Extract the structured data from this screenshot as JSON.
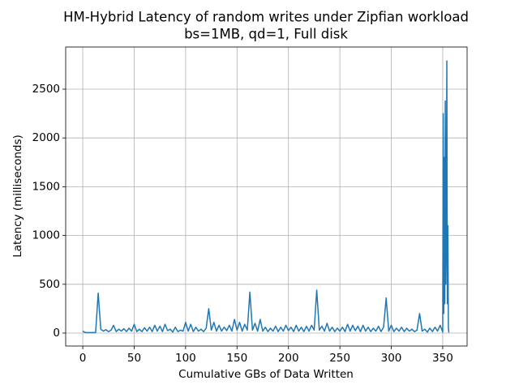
{
  "chart_data": {
    "type": "line",
    "title": "HM-Hybrid Latency of random writes under Zipfian workload",
    "subtitle": "bs=1MB, qd=1, Full disk",
    "xlabel": "Cumulative GBs of Data Written",
    "ylabel": "Latency (milliseconds)",
    "xlim": [
      -16.6,
      373.7
    ],
    "ylim": [
      -133,
      2932
    ],
    "xticks": [
      0,
      50,
      100,
      150,
      200,
      250,
      300,
      350
    ],
    "yticks": [
      0,
      500,
      1000,
      1500,
      2000,
      2500
    ],
    "grid": true,
    "series": [
      {
        "color": "#1f77b4",
        "x": [
          0,
          2.5,
          5,
          7.5,
          10,
          12.5,
          15,
          17.5,
          20,
          22.5,
          25,
          27.5,
          30,
          32.5,
          35,
          37.5,
          40,
          42.5,
          45,
          47.5,
          50,
          52.5,
          55,
          57.5,
          60,
          62.5,
          65,
          67.5,
          70,
          72.5,
          75,
          77.5,
          80,
          82.5,
          85,
          87.5,
          90,
          92.5,
          95,
          97.5,
          100,
          102.5,
          105,
          107.5,
          110,
          112.5,
          115,
          117.5,
          120,
          122.5,
          125,
          127.5,
          130,
          132.5,
          135,
          137.5,
          140,
          142.5,
          145,
          147.5,
          150,
          152.5,
          155,
          157.5,
          160,
          162.5,
          165,
          167.5,
          170,
          172.5,
          175,
          177.5,
          180,
          182.5,
          185,
          187.5,
          190,
          192.5,
          195,
          197.5,
          200,
          202.5,
          205,
          207.5,
          210,
          212.5,
          215,
          217.5,
          220,
          222.5,
          225,
          227.5,
          230,
          232.5,
          235,
          237.5,
          240,
          242.5,
          245,
          247.5,
          250,
          252.5,
          255,
          257.5,
          260,
          262.5,
          265,
          267.5,
          270,
          272.5,
          275,
          277.5,
          280,
          282.5,
          285,
          287.5,
          290,
          292.5,
          295,
          297.5,
          300,
          302.5,
          305,
          307.5,
          310,
          312.5,
          315,
          317.5,
          320,
          322.5,
          325,
          327.5,
          330,
          332.5,
          335,
          337.5,
          340,
          342.5,
          345,
          347.5,
          350,
          350.5,
          351,
          351.5,
          352,
          352.5,
          353,
          353.5,
          354,
          354.5,
          355,
          355.5,
          356
        ],
        "values": [
          20,
          5,
          5,
          5,
          5,
          5,
          410,
          40,
          20,
          35,
          15,
          30,
          80,
          15,
          40,
          20,
          45,
          15,
          50,
          20,
          90,
          15,
          40,
          15,
          55,
          20,
          60,
          15,
          80,
          20,
          70,
          15,
          90,
          25,
          40,
          10,
          60,
          15,
          30,
          20,
          110,
          20,
          90,
          15,
          60,
          20,
          40,
          15,
          50,
          250,
          30,
          110,
          20,
          80,
          20,
          60,
          25,
          80,
          20,
          140,
          30,
          110,
          20,
          90,
          30,
          420,
          30,
          100,
          20,
          140,
          20,
          60,
          15,
          50,
          20,
          70,
          15,
          60,
          20,
          80,
          25,
          60,
          15,
          80,
          20,
          60,
          15,
          70,
          20,
          80,
          30,
          440,
          30,
          70,
          20,
          100,
          20,
          60,
          15,
          50,
          20,
          60,
          15,
          90,
          20,
          80,
          25,
          70,
          15,
          80,
          20,
          60,
          15,
          50,
          20,
          70,
          15,
          60,
          360,
          20,
          80,
          15,
          50,
          20,
          60,
          15,
          50,
          20,
          40,
          15,
          30,
          200,
          20,
          40,
          10,
          50,
          15,
          60,
          20,
          80,
          10,
          2250,
          200,
          1800,
          300,
          2380,
          500,
          1000,
          2790,
          300,
          1100,
          50,
          5
        ]
      }
    ]
  }
}
